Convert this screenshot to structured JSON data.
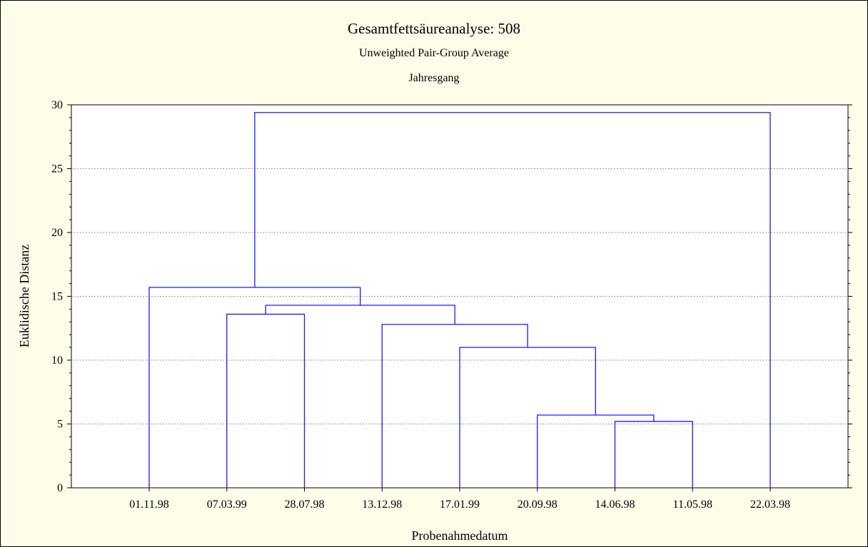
{
  "colors": {
    "background": "#fefde9",
    "plot_area": "#ffffff",
    "link": "#1a1aff",
    "grid": "#9a9a9a"
  },
  "chart_data": {
    "type": "dendrogram",
    "title": "Gesamtfettsäureanalyse: 508",
    "subtitle": "Unweighted Pair-Group Average",
    "subtitle2": "Jahresgang",
    "xlabel": "Probenahmedatum",
    "ylabel": "Euklidische Distanz",
    "ylim": [
      0,
      30
    ],
    "yticks": [
      0,
      5,
      10,
      15,
      20,
      25,
      30
    ],
    "grid": true,
    "leaves": [
      "01.11.98",
      "07.03.99",
      "28.07.98",
      "13.12.98",
      "17.01.99",
      "20.09.98",
      "14.06.98",
      "11.05.98",
      "22.03.98"
    ],
    "merges": [
      {
        "left": "14.06.98",
        "right": "11.05.98",
        "distance": 5.2
      },
      {
        "left": "20.09.98",
        "right": "cluster(14.06.98,11.05.98)",
        "distance": 5.7
      },
      {
        "left": "17.01.99",
        "right": "cluster(20.09.98,14.06.98,11.05.98)",
        "distance": 11.0
      },
      {
        "left": "13.12.98",
        "right": "cluster(17.01.99,20.09.98,14.06.98,11.05.98)",
        "distance": 12.8
      },
      {
        "left": "07.03.99",
        "right": "28.07.98",
        "distance": 13.6
      },
      {
        "left": "cluster(07.03.99,28.07.98)",
        "right": "cluster(13.12.98,17.01.99,20.09.98,14.06.98,11.05.98)",
        "distance": 14.3
      },
      {
        "left": "01.11.98",
        "right": "cluster(07.03.99,28.07.98,13.12.98,17.01.99,20.09.98,14.06.98,11.05.98)",
        "distance": 15.7
      },
      {
        "left": "cluster(01.11.98,...,11.05.98)",
        "right": "22.03.98",
        "distance": 29.4
      }
    ]
  }
}
